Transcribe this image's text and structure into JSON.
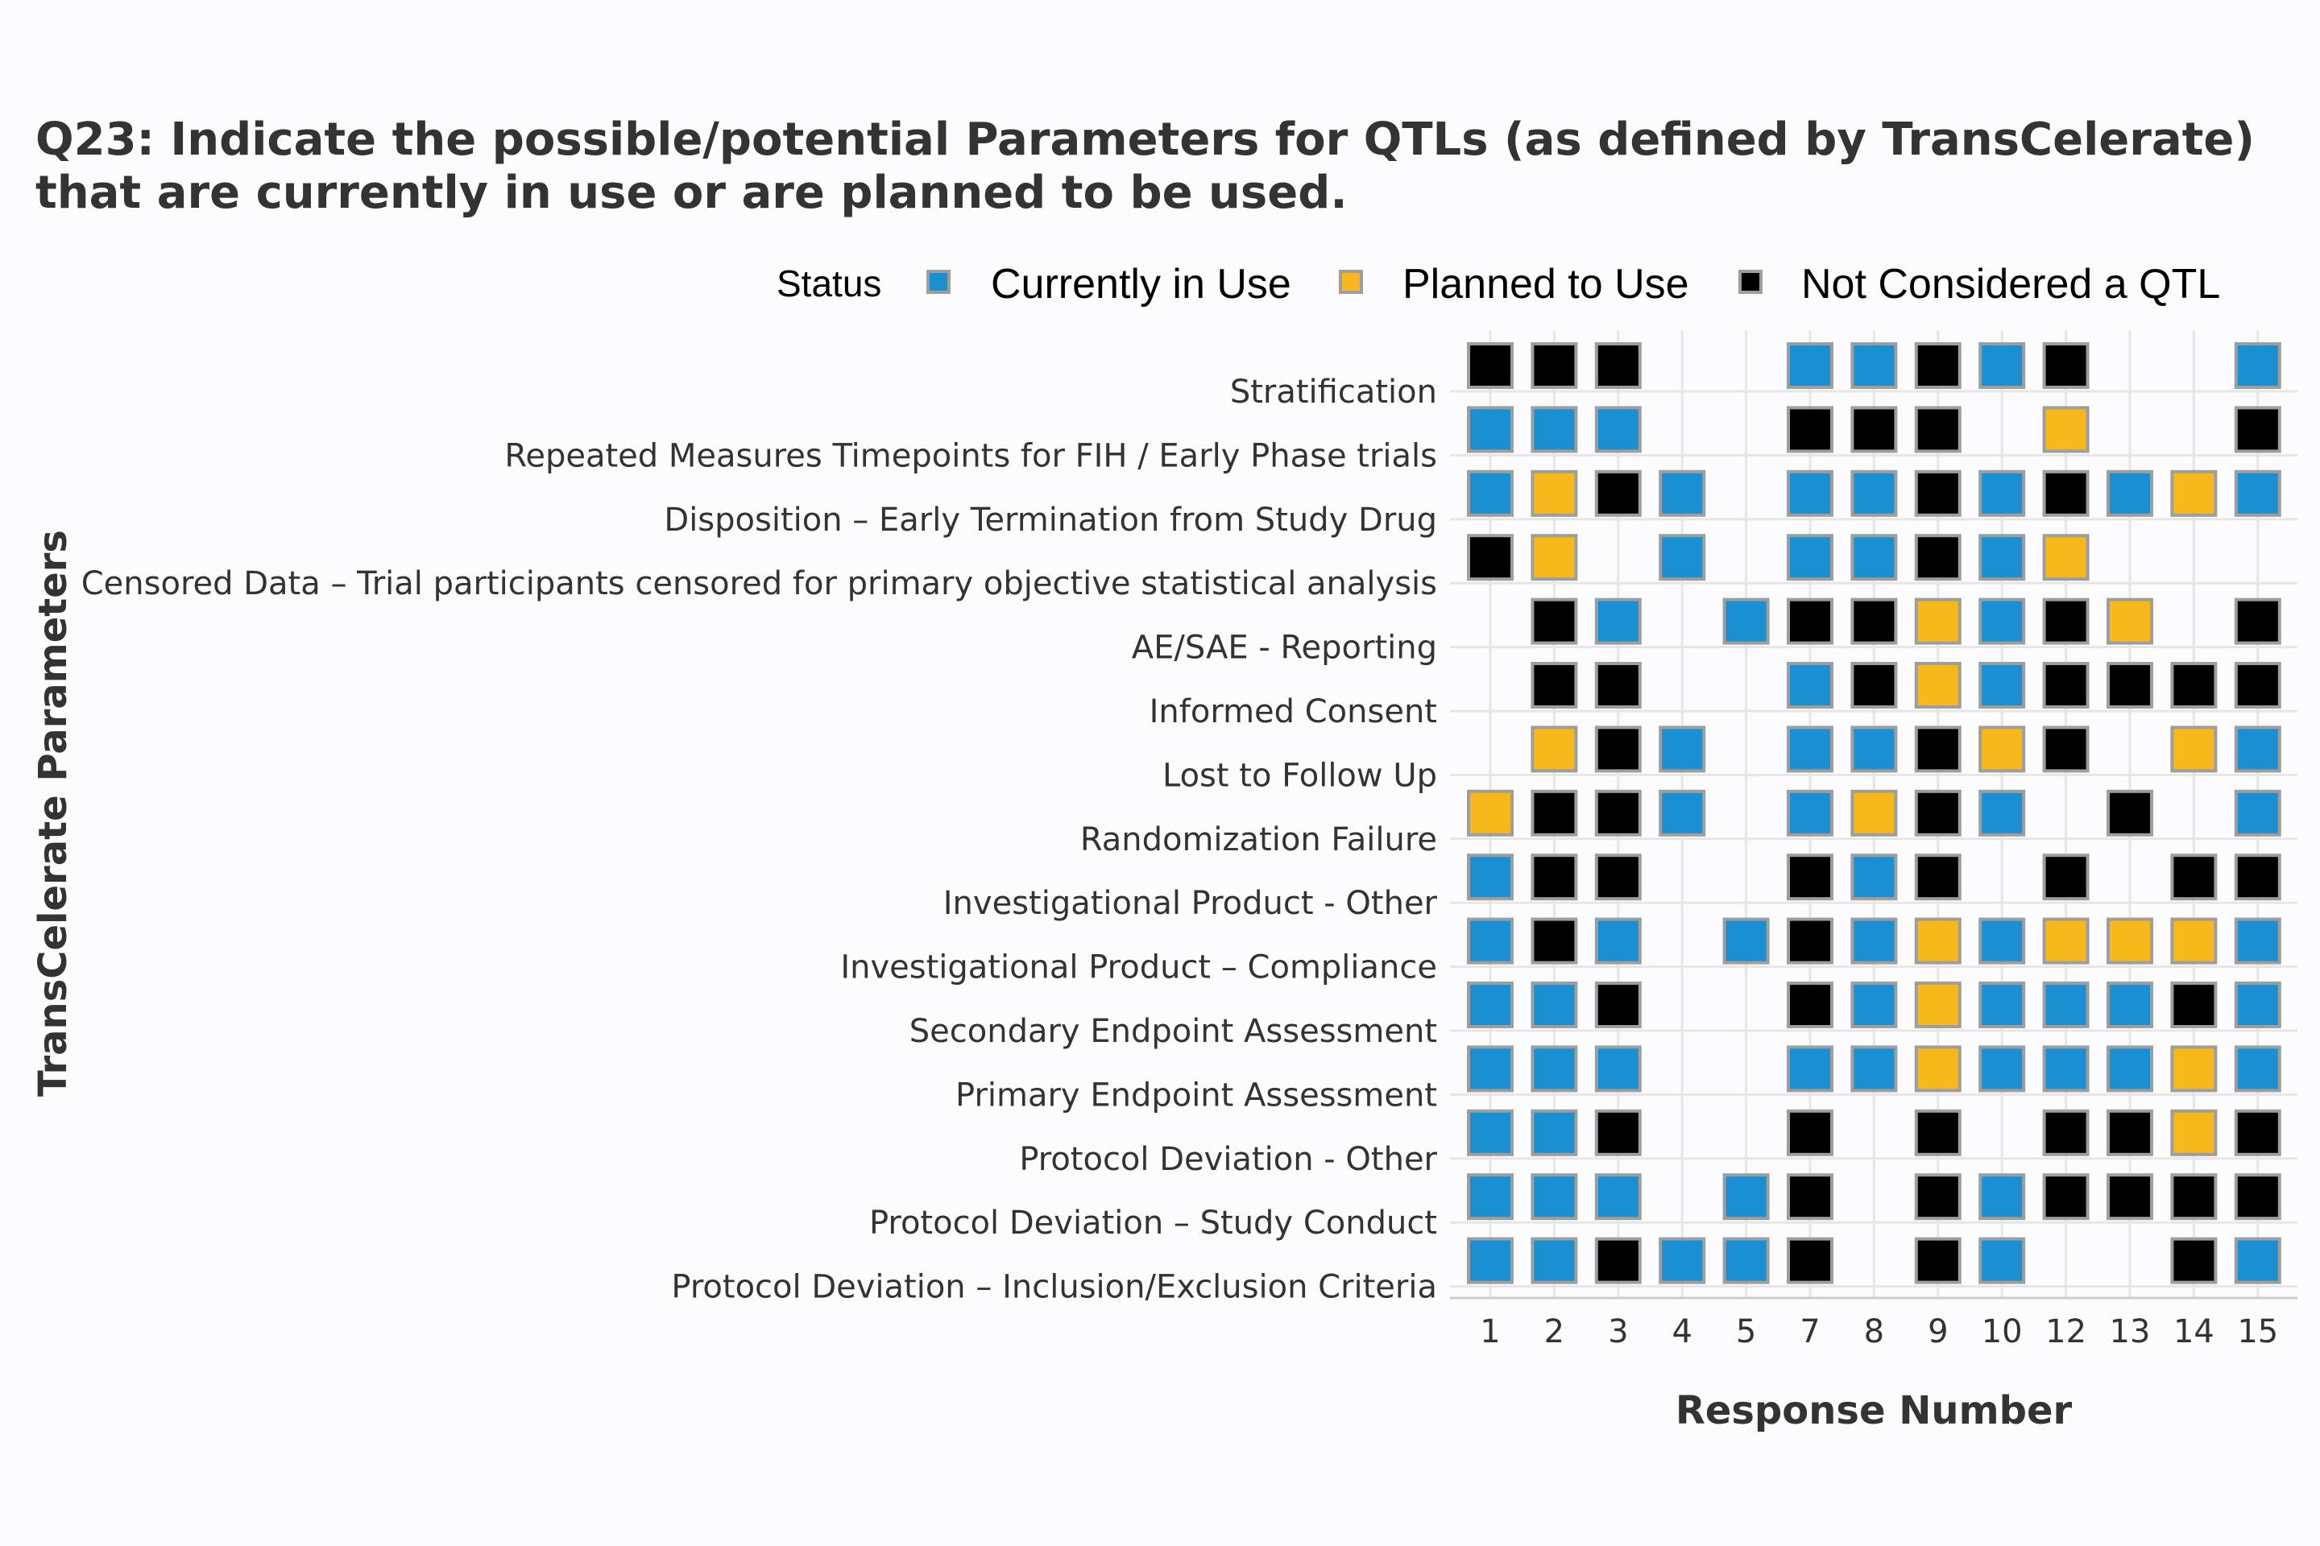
{
  "chart_data": {
    "type": "heatmap",
    "title_lines": [
      "Q23: Indicate the possible/potential Parameters for QTLs (as defined by TransCelerate)",
      "that are currently in use or are planned to be used."
    ],
    "xlabel": "Response Number",
    "ylabel": "TransCelerate Parameters",
    "x_categories": [
      "1",
      "2",
      "3",
      "4",
      "5",
      "7",
      "8",
      "9",
      "10",
      "12",
      "13",
      "14",
      "15"
    ],
    "legend": {
      "title": "Status",
      "position": "top",
      "entries": [
        {
          "key": "C",
          "label": "Currently in Use",
          "color": "#1a8fd1"
        },
        {
          "key": "P",
          "label": "Planned to Use",
          "color": "#f7b81b"
        },
        {
          "key": "N",
          "label": "Not Considered a QTL",
          "color": "#000000"
        }
      ]
    },
    "grid": true,
    "rows": [
      {
        "label": "Stratification",
        "cells": [
          "N",
          "N",
          "N",
          "",
          "",
          "C",
          "C",
          "N",
          "C",
          "N",
          "",
          "",
          "C"
        ]
      },
      {
        "label": "Repeated Measures Timepoints for FIH / Early Phase trials",
        "cells": [
          "C",
          "C",
          "C",
          "",
          "",
          "N",
          "N",
          "N",
          "",
          "P",
          "",
          "",
          "N"
        ]
      },
      {
        "label": "Disposition – Early Termination from Study Drug",
        "cells": [
          "C",
          "P",
          "N",
          "C",
          "",
          "C",
          "C",
          "N",
          "C",
          "N",
          "C",
          "P",
          "C"
        ]
      },
      {
        "label": "Censored Data – Trial participants censored for primary objective statistical analysis",
        "cells": [
          "N",
          "P",
          "",
          "C",
          "",
          "C",
          "C",
          "N",
          "C",
          "P",
          "",
          "",
          ""
        ]
      },
      {
        "label": "AE/SAE - Reporting",
        "cells": [
          "",
          "N",
          "C",
          "",
          "C",
          "N",
          "N",
          "P",
          "C",
          "N",
          "P",
          "",
          "N"
        ]
      },
      {
        "label": "Informed Consent",
        "cells": [
          "",
          "N",
          "N",
          "",
          "",
          "C",
          "N",
          "P",
          "C",
          "N",
          "N",
          "N",
          "N"
        ]
      },
      {
        "label": "Lost to Follow Up",
        "cells": [
          "",
          "P",
          "N",
          "C",
          "",
          "C",
          "C",
          "N",
          "P",
          "N",
          "",
          "P",
          "C"
        ]
      },
      {
        "label": "Randomization Failure",
        "cells": [
          "P",
          "N",
          "N",
          "C",
          "",
          "C",
          "P",
          "N",
          "C",
          "",
          "N",
          "",
          "C"
        ]
      },
      {
        "label": "Investigational Product - Other",
        "cells": [
          "C",
          "N",
          "N",
          "",
          "",
          "N",
          "C",
          "N",
          "",
          "N",
          "",
          "N",
          "N"
        ]
      },
      {
        "label": "Investigational Product – Compliance",
        "cells": [
          "C",
          "N",
          "C",
          "",
          "C",
          "N",
          "C",
          "P",
          "C",
          "P",
          "P",
          "P",
          "C"
        ]
      },
      {
        "label": "Secondary Endpoint Assessment",
        "cells": [
          "C",
          "C",
          "N",
          "",
          "",
          "N",
          "C",
          "P",
          "C",
          "C",
          "C",
          "N",
          "C"
        ]
      },
      {
        "label": "Primary Endpoint Assessment",
        "cells": [
          "C",
          "C",
          "C",
          "",
          "",
          "C",
          "C",
          "P",
          "C",
          "C",
          "C",
          "P",
          "C"
        ]
      },
      {
        "label": "Protocol Deviation - Other",
        "cells": [
          "C",
          "C",
          "N",
          "",
          "",
          "N",
          "",
          "N",
          "",
          "N",
          "N",
          "P",
          "N"
        ]
      },
      {
        "label": "Protocol Deviation – Study Conduct",
        "cells": [
          "C",
          "C",
          "C",
          "",
          "C",
          "N",
          "",
          "N",
          "C",
          "N",
          "N",
          "N",
          "N"
        ]
      },
      {
        "label": "Protocol Deviation – Inclusion/Exclusion Criteria",
        "cells": [
          "C",
          "C",
          "N",
          "C",
          "C",
          "N",
          "",
          "N",
          "C",
          "",
          "",
          "N",
          "C"
        ]
      }
    ]
  }
}
